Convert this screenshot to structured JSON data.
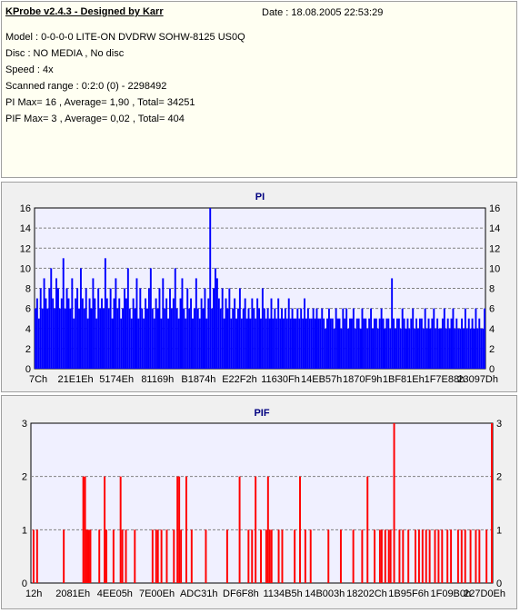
{
  "header": {
    "title": "KProbe v2.4.3 - Designed by Karr",
    "date": "Date : 18.08.2005 22:53:29"
  },
  "info_lines": [
    "Model : 0-0-0-0 LITE-ON DVDRW SOHW-8125  US0Q",
    "Disc : NO MEDIA , No disc",
    "Speed : 4x",
    "Scanned range : 0:2:0 (0) - 2298492",
    "PI Max= 16 , Average= 1,90 , Total= 34251",
    "PIF Max= 3 , Average= 0,02 , Total= 404"
  ],
  "colors": {
    "pi": "#0000ff",
    "pif": "#ff0000",
    "title": "#000080",
    "plot_bg": "#f0f0ff"
  },
  "chart_data": [
    {
      "type": "bar",
      "title": "PI",
      "ylim": [
        0,
        16
      ],
      "yticks": [
        0,
        2,
        4,
        6,
        8,
        10,
        12,
        14,
        16
      ],
      "xtick_labels": [
        "7Ch",
        "21E1Eh",
        "5174Eh",
        "81169h",
        "B1874h",
        "E22F2h",
        "11630Fh",
        "14EB57h",
        "1870F9h",
        "1BF81Eh",
        "1F7E88h",
        "23097Dh"
      ],
      "grid": true,
      "series": [
        {
          "values": [
            6,
            7,
            5,
            8,
            6,
            9,
            7,
            6,
            8,
            10,
            7,
            6,
            9,
            8,
            6,
            7,
            11,
            6,
            8,
            7,
            6,
            9,
            5,
            7,
            8,
            6,
            10,
            7,
            6,
            8,
            5,
            7,
            6,
            9,
            7,
            5,
            8,
            6,
            7,
            6,
            11,
            7,
            6,
            8,
            5,
            7,
            9,
            6,
            7,
            5,
            6,
            8,
            7,
            10,
            6,
            5,
            7,
            6,
            9,
            5,
            8,
            6,
            5,
            7,
            6,
            8,
            10,
            6,
            5,
            7,
            6,
            8,
            5,
            9,
            6,
            7,
            5,
            8,
            6,
            7,
            10,
            6,
            5,
            7,
            9,
            6,
            5,
            8,
            6,
            7,
            5,
            6,
            9,
            6,
            5,
            7,
            6,
            8,
            5,
            7,
            16,
            6,
            8,
            10,
            9,
            7,
            6,
            8,
            5,
            7,
            6,
            8,
            5,
            6,
            7,
            5,
            6,
            8,
            5,
            6,
            7,
            5,
            6,
            5,
            7,
            6,
            5,
            7,
            6,
            5,
            8,
            6,
            5,
            6,
            5,
            7,
            5,
            6,
            5,
            7,
            5,
            6,
            5,
            6,
            5,
            7,
            5,
            6,
            5,
            5,
            6,
            5,
            6,
            5,
            7,
            5,
            6,
            5,
            5,
            6,
            5,
            6,
            5,
            5,
            6,
            5,
            4,
            5,
            6,
            5,
            5,
            4,
            6,
            5,
            5,
            4,
            6,
            5,
            6,
            4,
            5,
            5,
            6,
            4,
            5,
            5,
            4,
            6,
            5,
            5,
            4,
            5,
            6,
            4,
            5,
            5,
            4,
            5,
            6,
            5,
            4,
            5,
            5,
            4,
            9,
            5,
            4,
            5,
            5,
            4,
            6,
            5,
            4,
            5,
            4,
            5,
            6,
            4,
            5,
            4,
            5,
            5,
            4,
            6,
            4,
            5,
            4,
            5,
            6,
            4,
            5,
            4,
            4,
            5,
            6,
            4,
            5,
            4,
            5,
            6,
            4,
            5,
            4,
            4,
            5,
            4,
            6,
            4,
            5,
            4,
            5,
            4,
            6,
            4,
            5,
            4,
            4,
            6
          ]
        }
      ]
    },
    {
      "type": "bar",
      "title": "PIF",
      "ylim": [
        0,
        3
      ],
      "yticks": [
        0,
        1,
        2,
        3
      ],
      "xtick_labels": [
        "12h",
        "2081Eh",
        "4EE05h",
        "7E00Eh",
        "ADC31h",
        "DF6F8h",
        "1134B5h",
        "14B003h",
        "18202Ch",
        "1B95F6h",
        "1F09B0h",
        "227D0Eh"
      ],
      "grid": true,
      "series": [
        {
          "values": [
            0,
            1,
            0,
            1,
            0,
            0,
            0,
            0,
            0,
            0,
            0,
            0,
            0,
            0,
            0,
            0,
            0,
            0,
            1,
            0,
            0,
            0,
            0,
            0,
            0,
            0,
            0,
            0,
            0,
            2,
            2,
            1,
            1,
            1,
            0,
            0,
            0,
            0,
            1,
            0,
            0,
            2,
            1,
            0,
            0,
            0,
            1,
            0,
            0,
            0,
            2,
            1,
            0,
            1,
            0,
            0,
            0,
            0,
            1,
            0,
            0,
            0,
            0,
            0,
            0,
            0,
            0,
            0,
            1,
            0,
            1,
            1,
            0,
            1,
            0,
            0,
            1,
            0,
            0,
            0,
            1,
            0,
            2,
            2,
            1,
            0,
            0,
            2,
            0,
            0,
            1,
            0,
            0,
            0,
            0,
            0,
            0,
            0,
            1,
            0,
            0,
            0,
            0,
            0,
            0,
            0,
            0,
            0,
            0,
            0,
            1,
            0,
            0,
            0,
            0,
            0,
            0,
            2,
            0,
            0,
            0,
            0,
            1,
            0,
            1,
            0,
            2,
            0,
            0,
            1,
            0,
            0,
            1,
            2,
            1,
            1,
            0,
            0,
            0,
            1,
            0,
            1,
            0,
            0,
            0,
            0,
            0,
            0,
            1,
            0,
            0,
            2,
            0,
            0,
            1,
            0,
            0,
            1,
            0,
            0,
            0,
            0,
            0,
            0,
            0,
            0,
            0,
            1,
            0,
            0,
            0,
            0,
            0,
            0,
            1,
            0,
            0,
            0,
            0,
            0,
            0,
            1,
            0,
            0,
            0,
            0,
            1,
            0,
            0,
            2,
            0,
            0,
            0,
            1,
            0,
            0,
            1,
            1,
            0,
            1,
            0,
            1,
            1,
            0,
            3,
            0,
            0,
            1,
            0,
            1,
            0,
            0,
            1,
            0,
            0,
            0,
            1,
            0,
            1,
            0,
            1,
            0,
            1,
            0,
            1,
            0,
            0,
            1,
            0,
            1,
            0,
            1,
            0,
            0,
            1,
            0,
            1,
            0,
            0,
            0,
            1,
            0,
            1,
            0,
            1,
            0,
            0,
            1,
            0,
            0,
            1,
            0,
            1,
            0,
            0,
            0,
            1,
            0,
            0,
            3
          ]
        }
      ]
    }
  ]
}
